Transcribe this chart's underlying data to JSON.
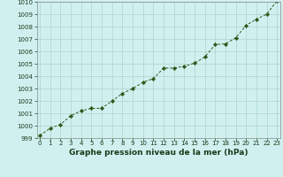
{
  "x": [
    0,
    1,
    2,
    3,
    4,
    5,
    6,
    7,
    8,
    9,
    10,
    11,
    12,
    13,
    14,
    15,
    16,
    17,
    18,
    19,
    20,
    21,
    22,
    23
  ],
  "y": [
    999.2,
    999.8,
    1000.1,
    1000.8,
    1001.2,
    1001.4,
    1001.4,
    1002.0,
    1002.6,
    1003.0,
    1003.5,
    1003.8,
    1004.65,
    1004.65,
    1004.8,
    1005.05,
    1005.55,
    1006.55,
    1006.6,
    1007.1,
    1008.1,
    1008.6,
    1009.0,
    1010.1
  ],
  "title": "Graphe pression niveau de la mer (hPa)",
  "ylim": [
    999,
    1010
  ],
  "xlim": [
    -0.3,
    23.3
  ],
  "yticks": [
    999,
    1000,
    1001,
    1002,
    1003,
    1004,
    1005,
    1006,
    1007,
    1008,
    1009,
    1010
  ],
  "xticks": [
    0,
    1,
    2,
    3,
    4,
    5,
    6,
    7,
    8,
    9,
    10,
    11,
    12,
    13,
    14,
    15,
    16,
    17,
    18,
    19,
    20,
    21,
    22,
    23
  ],
  "line_color": "#2d5a1b",
  "marker_color": "#2d5a1b",
  "bg_color": "#d0f0f0",
  "grid_color": "#a8d5c8",
  "title_color": "#1a3a1a",
  "title_fontsize": 6.5,
  "tick_fontsize": 5.0
}
